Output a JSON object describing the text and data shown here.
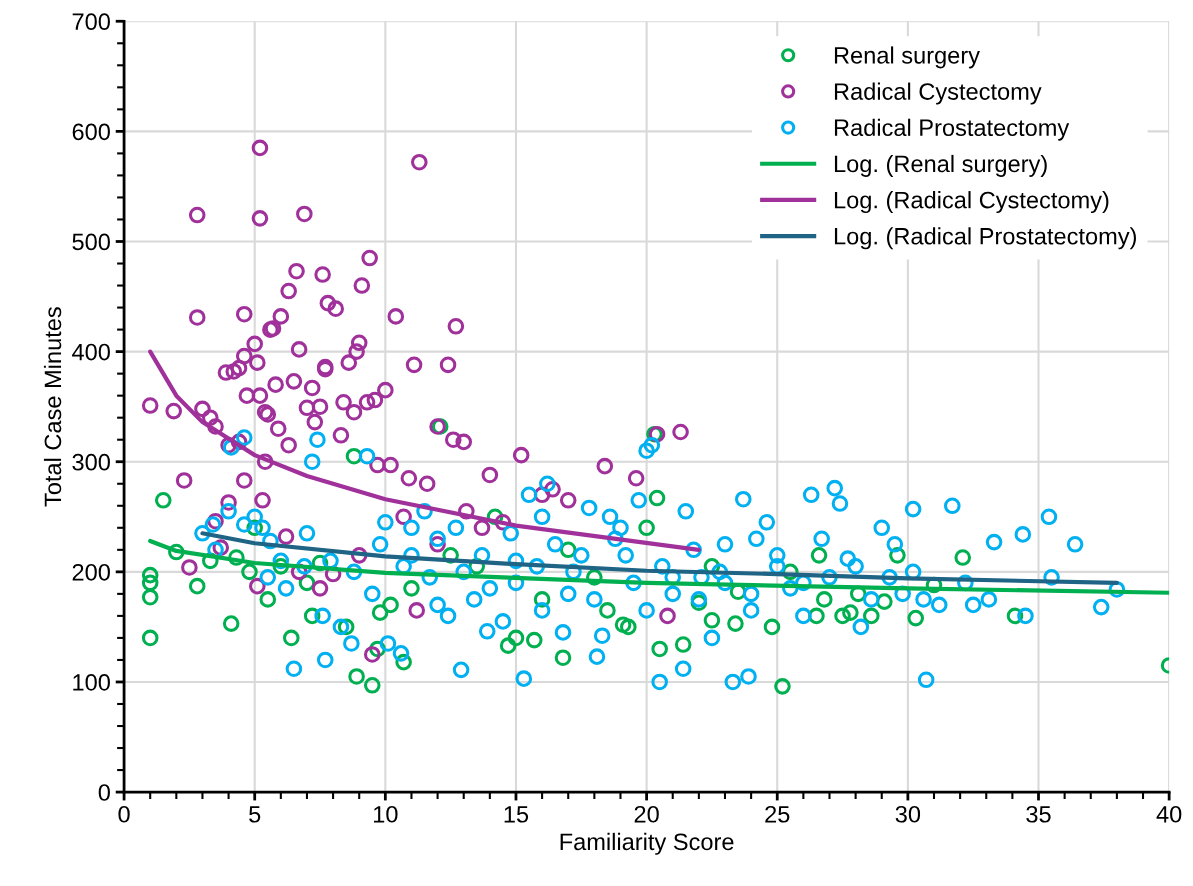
{
  "chart_data": {
    "type": "scatter",
    "xlabel": "Familiarity Score",
    "ylabel": "Total Case Minutes",
    "xlim": [
      0,
      40
    ],
    "xticks": [
      0,
      5,
      10,
      15,
      20,
      25,
      30,
      35,
      40
    ],
    "ylim": [
      0,
      700
    ],
    "yticks": [
      0,
      100,
      200,
      300,
      400,
      500,
      600,
      700
    ],
    "grid": true,
    "legend": "top right",
    "marker": "circle",
    "series": [
      {
        "name": "Renal surgery",
        "color": "#00b050",
        "x": [
          1.0,
          1.0,
          1.0,
          1.0,
          1.5,
          2.8,
          4.1,
          4.3,
          4.8,
          5.5,
          6.4,
          7.2,
          8.8,
          8.9,
          9.5,
          9.7,
          9.8,
          10.7,
          12.1,
          14.7,
          15.0,
          15.7,
          16.8,
          19.1,
          19.3,
          20.3,
          20.4,
          20.5,
          21.4,
          22.0,
          22.5,
          23.4,
          24.8,
          25.2,
          26.5,
          26.6,
          27.5,
          28.6,
          29.1,
          29.6,
          30.3,
          32.1,
          34.1,
          40.0,
          2.0,
          3.3,
          6.0,
          7.0,
          7.5,
          11.0,
          12.5,
          13.5,
          14.2,
          17.0,
          18.5,
          20.0,
          22.5,
          23.5,
          25.5,
          26.8,
          27.8,
          28.1,
          31.0,
          5.0,
          8.5,
          10.2,
          16.0,
          18.0
        ],
        "values": [
          197,
          190,
          177,
          140,
          265,
          187,
          153,
          213,
          200,
          175,
          140,
          160,
          305,
          105,
          97,
          130,
          163,
          118,
          332,
          133,
          140,
          138,
          122,
          152,
          150,
          325,
          267,
          130,
          134,
          172,
          156,
          153,
          150,
          96,
          160,
          215,
          160,
          160,
          173,
          215,
          158,
          213,
          160,
          115,
          218,
          210,
          205,
          190,
          208,
          185,
          215,
          205,
          250,
          220,
          165,
          240,
          205,
          182,
          200,
          175,
          163,
          180,
          188,
          240,
          150,
          170,
          175,
          195
        ]
      },
      {
        "name": "Radical Cystectomy",
        "color": "#a0309a",
        "x": [
          1.0,
          1.9,
          2.8,
          2.8,
          3.0,
          3.3,
          3.5,
          2.3,
          2.5,
          3.7,
          3.9,
          4.2,
          4.4,
          4.6,
          4.7,
          4.6,
          5.0,
          5.2,
          5.2,
          5.1,
          5.2,
          5.4,
          5.5,
          5.6,
          5.7,
          5.8,
          6.0,
          6.3,
          6.5,
          6.6,
          6.7,
          6.9,
          7.0,
          7.2,
          7.5,
          7.6,
          7.7,
          7.7,
          7.8,
          8.1,
          8.4,
          8.6,
          8.9,
          9.0,
          9.1,
          9.4,
          9.6,
          10.0,
          10.4,
          11.3,
          11.1,
          12.0,
          12.7,
          12.4,
          13.0,
          14.0,
          15.2,
          16.4,
          18.4,
          19.6,
          20.4,
          21.3,
          4.0,
          4.4,
          4.6,
          5.4,
          5.9,
          6.3,
          7.3,
          8.3,
          8.8,
          9.3,
          9.7,
          10.2,
          10.9,
          11.6,
          12.6,
          13.1,
          14.5,
          9.5,
          6.2,
          8.0,
          10.7,
          12.0,
          16.0,
          17.0,
          20.8,
          11.2,
          7.5,
          5.1,
          3.5,
          6.7,
          9.0,
          4.0,
          5.3,
          13.7
        ],
        "values": [
          351,
          346,
          524,
          431,
          348,
          340,
          332,
          283,
          204,
          222,
          381,
          382,
          385,
          434,
          360,
          396,
          407,
          585,
          521,
          390,
          360,
          345,
          343,
          420,
          421,
          370,
          432,
          455,
          373,
          473,
          402,
          525,
          349,
          367,
          350,
          470,
          386,
          384,
          444,
          439,
          354,
          390,
          400,
          408,
          460,
          485,
          356,
          365,
          432,
          572,
          388,
          332,
          423,
          388,
          318,
          288,
          306,
          275,
          296,
          285,
          325,
          327,
          315,
          318,
          283,
          300,
          330,
          315,
          336,
          324,
          345,
          354,
          297,
          297,
          285,
          280,
          320,
          255,
          245,
          125,
          232,
          198,
          250,
          225,
          270,
          265,
          160,
          165,
          185,
          187,
          246,
          200,
          215,
          263,
          265,
          240
        ]
      },
      {
        "name": "Radical Prostatectomy",
        "color": "#00b0f0",
        "x": [
          3.0,
          3.4,
          3.5,
          4.1,
          4.6,
          4.0,
          4.6,
          5.0,
          5.3,
          5.6,
          6.0,
          6.5,
          6.9,
          7.2,
          7.4,
          7.7,
          7.6,
          8.3,
          8.7,
          9.3,
          9.5,
          10.1,
          10.6,
          11.0,
          11.5,
          12.0,
          12.4,
          12.9,
          13.4,
          13.9,
          14.5,
          15.0,
          15.3,
          15.5,
          16.0,
          16.2,
          16.8,
          17.2,
          17.8,
          18.1,
          18.3,
          18.6,
          19.2,
          19.7,
          20.0,
          20.2,
          20.5,
          21.0,
          21.4,
          21.5,
          22.1,
          22.5,
          23.0,
          23.3,
          23.7,
          23.9,
          24.2,
          24.6,
          25.0,
          25.5,
          26.3,
          26.7,
          27.2,
          27.4,
          28.0,
          28.6,
          29.0,
          29.5,
          30.2,
          30.2,
          30.7,
          30.6,
          31.7,
          32.2,
          32.5,
          33.1,
          33.3,
          34.4,
          34.5,
          35.4,
          35.5,
          36.4,
          37.4,
          38.0,
          29.3,
          27.7,
          26.0,
          24.0,
          22.8,
          21.8,
          20.6,
          19.5,
          18.8,
          17.5,
          16.5,
          15.8,
          14.8,
          13.7,
          12.7,
          11.7,
          10.7,
          9.8,
          8.8,
          7.9,
          7.0,
          6.2,
          5.5,
          12.0,
          14.0,
          16.0,
          18.0,
          20.0,
          22.0,
          24.0,
          26.0,
          28.2,
          31.2,
          10.0,
          11.0,
          13.0,
          15.0,
          17.0,
          19.0,
          21.0,
          23.0,
          25.0,
          27.0,
          29.8
        ],
        "values": [
          235,
          243,
          220,
          313,
          322,
          255,
          243,
          250,
          240,
          228,
          210,
          112,
          205,
          300,
          320,
          120,
          160,
          150,
          135,
          305,
          180,
          135,
          126,
          215,
          255,
          230,
          160,
          111,
          175,
          146,
          155,
          190,
          103,
          270,
          250,
          280,
          145,
          200,
          258,
          123,
          142,
          250,
          215,
          265,
          310,
          315,
          100,
          180,
          112,
          255,
          195,
          140,
          225,
          100,
          266,
          105,
          230,
          245,
          215,
          185,
          270,
          230,
          276,
          262,
          205,
          175,
          240,
          225,
          257,
          200,
          102,
          175,
          260,
          190,
          170,
          175,
          227,
          234,
          160,
          250,
          195,
          225,
          168,
          184,
          195,
          212,
          190,
          180,
          200,
          220,
          205,
          190,
          230,
          215,
          225,
          205,
          235,
          215,
          240,
          195,
          205,
          225,
          200,
          210,
          235,
          185,
          195,
          170,
          185,
          165,
          175,
          165,
          175,
          165,
          160,
          150,
          170,
          245,
          240,
          200,
          210,
          180,
          240,
          195,
          190,
          205,
          195,
          180
        ]
      },
      {
        "name": "Log. (Renal surgery)",
        "type": "line",
        "color": "#00b050",
        "marker": "none",
        "line_style": "solid",
        "x": [
          1,
          2,
          5,
          10,
          20,
          30,
          40
        ],
        "values": [
          228,
          219,
          208,
          199,
          190,
          185,
          181
        ]
      },
      {
        "name": "Log. (Radical Cystectomy)",
        "type": "line",
        "color": "#a0309a",
        "marker": "none",
        "line_style": "solid",
        "x": [
          1,
          2,
          3,
          5,
          7,
          10,
          15,
          22
        ],
        "values": [
          400,
          360,
          336,
          306,
          287,
          266,
          242,
          220
        ]
      },
      {
        "name": "Log. (Radical Prostatectomy)",
        "type": "line",
        "color": "#1f6385",
        "marker": "none",
        "line_style": "solid",
        "x": [
          3,
          5,
          10,
          15,
          20,
          25,
          30,
          38
        ],
        "values": [
          235,
          226,
          214,
          207,
          201,
          198,
          194,
          190
        ]
      }
    ]
  }
}
